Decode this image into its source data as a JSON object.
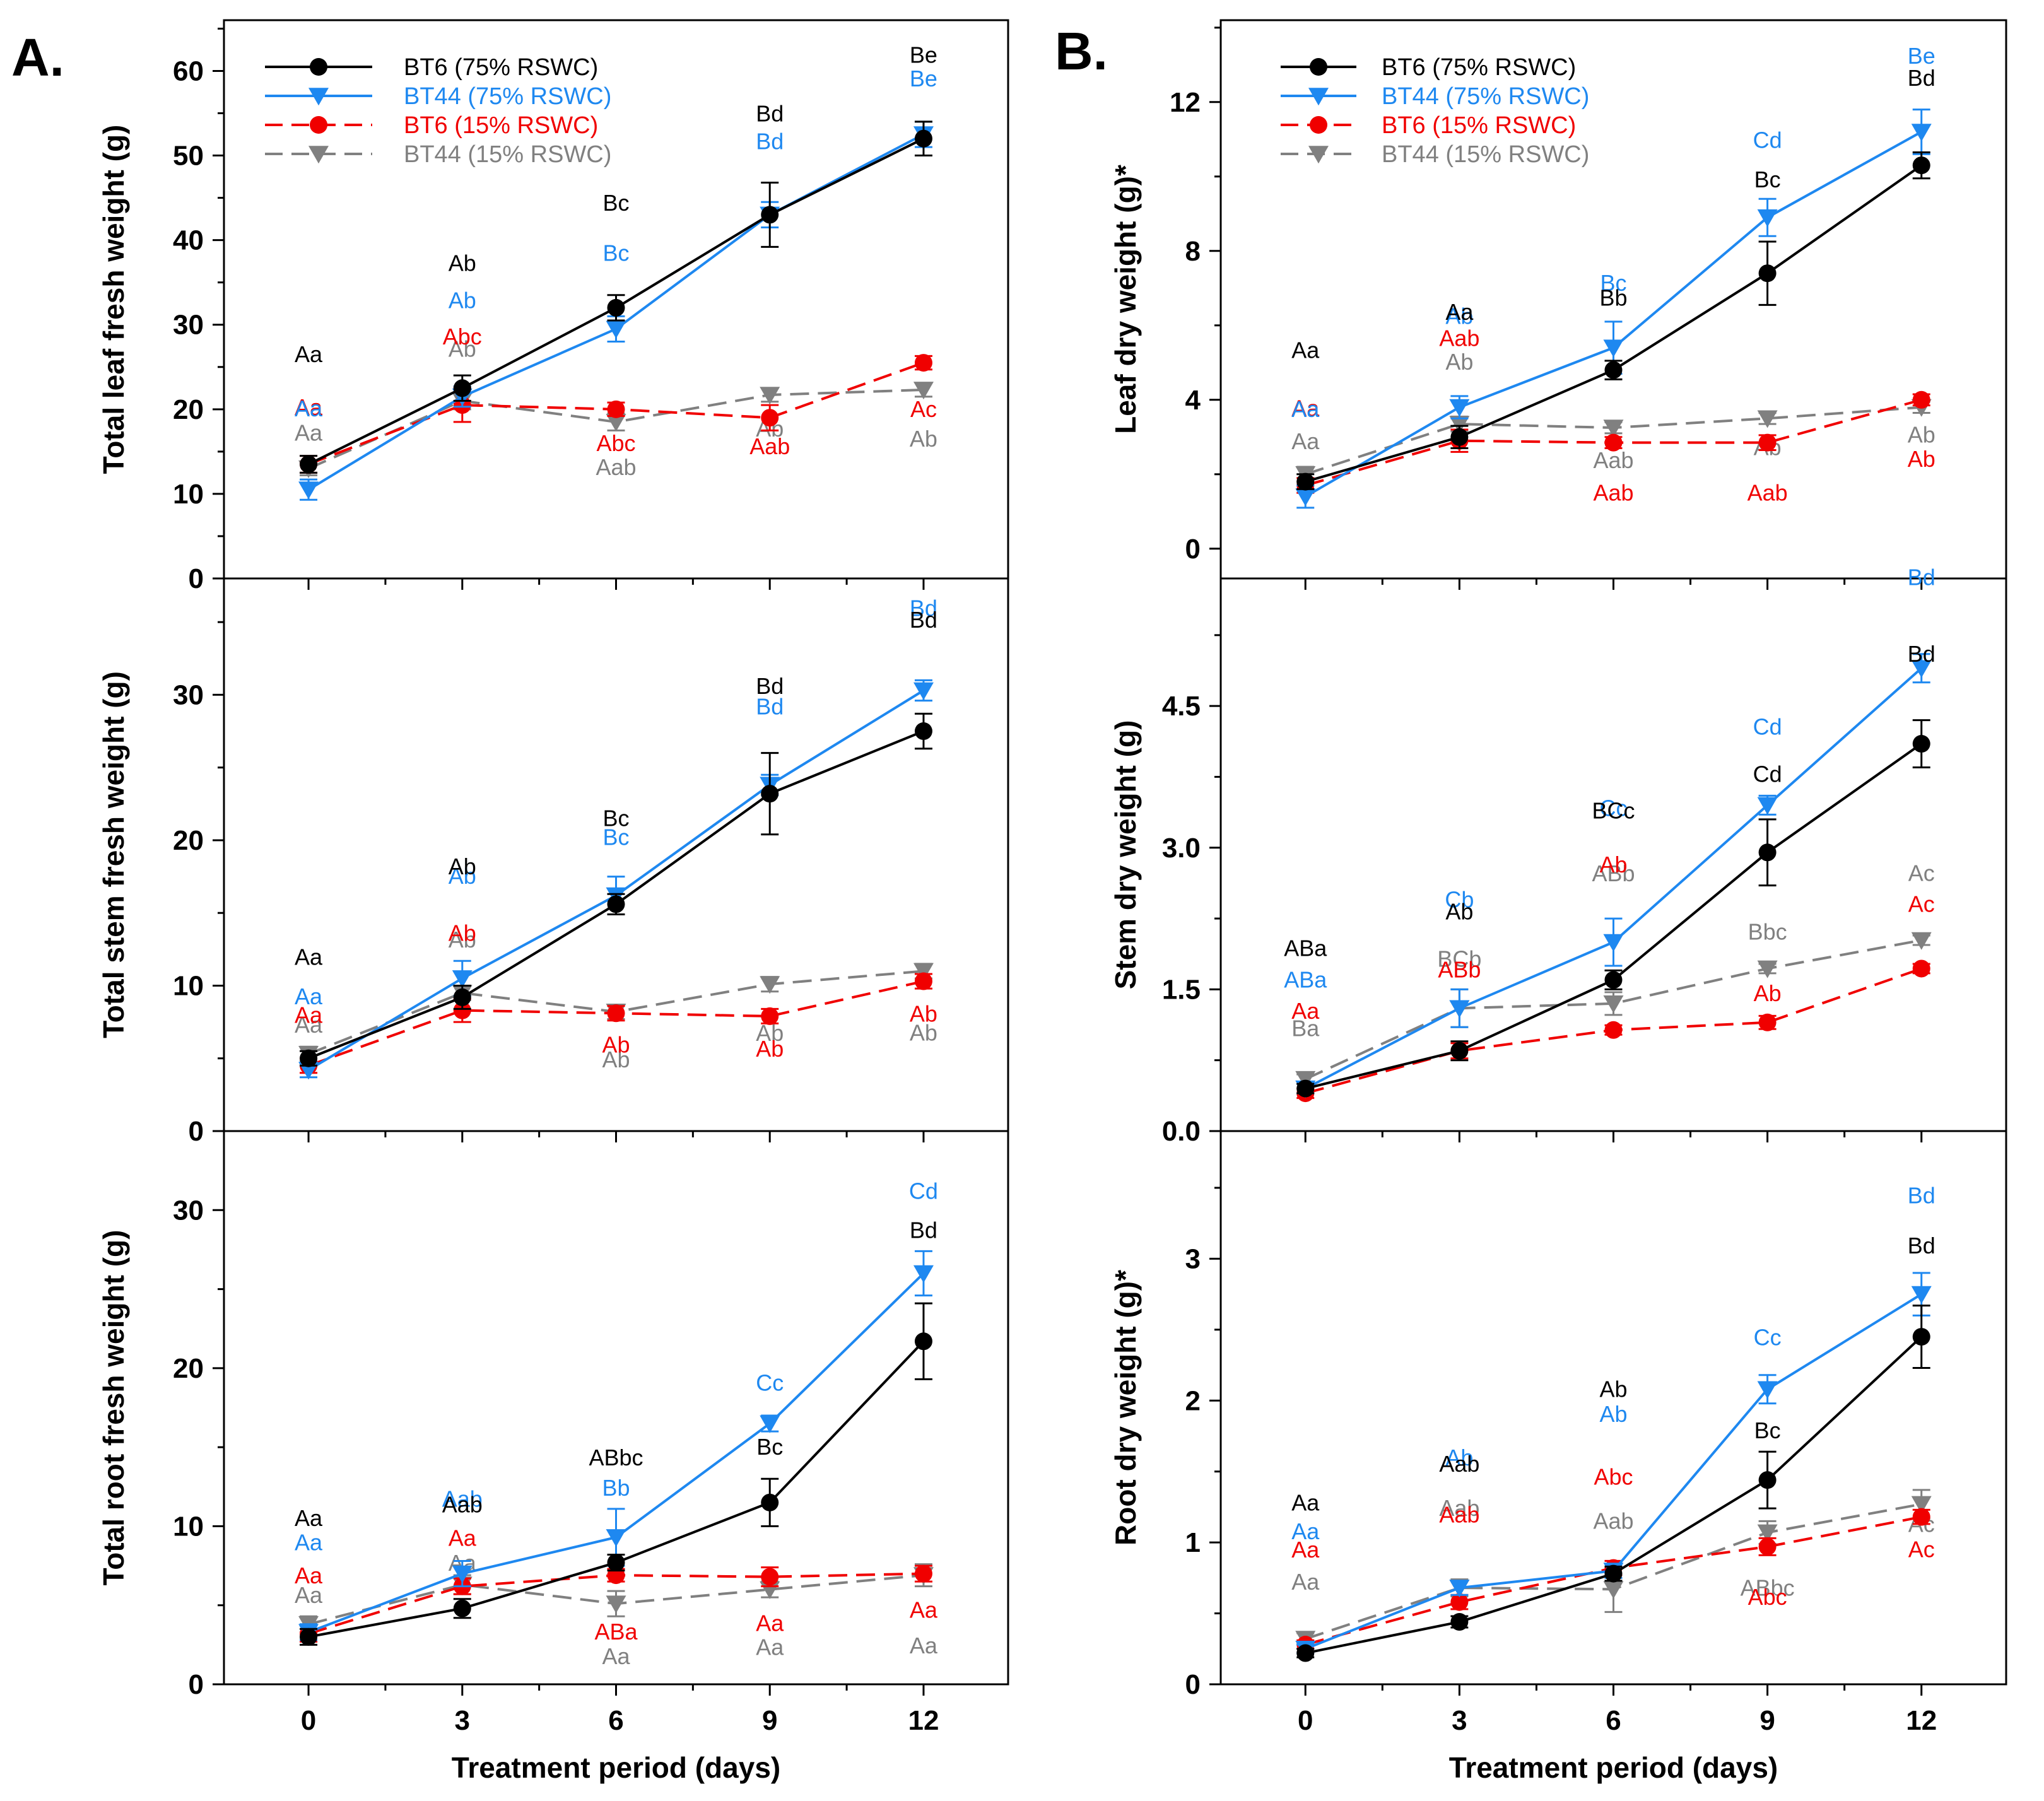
{
  "figure_labels": {
    "a": "A.",
    "b": "B."
  },
  "legend": [
    {
      "label": "BT6 (75% RSWC)",
      "color": "#000000",
      "marker": "circle",
      "dash": false
    },
    {
      "label": "BT44 (75% RSWC)",
      "color": "#1e88f0",
      "marker": "triangle-down",
      "dash": false
    },
    {
      "label": "BT6 (15% RSWC)",
      "color": "#f00000",
      "marker": "circle",
      "dash": true
    },
    {
      "label": "BT44 (15% RSWC)",
      "color": "#808080",
      "marker": "triangle-down",
      "dash": true
    }
  ],
  "chart_data": [
    {
      "type": "line",
      "id": "leaf-fresh",
      "ylabel": "Total leaf fresh weight (g)",
      "xlabel": "Treatment period (days)",
      "x": [
        0,
        3,
        6,
        9,
        12
      ],
      "ylim": [
        0,
        66
      ],
      "yticks": [
        0,
        10,
        20,
        30,
        40,
        50,
        60
      ],
      "series": [
        {
          "name": "BT6 (75% RSWC)",
          "values": [
            13.5,
            22.5,
            32,
            43,
            52
          ],
          "errors": [
            1.0,
            1.5,
            1.5,
            3.8,
            2.0
          ],
          "labels": [
            "Aa",
            "Ab",
            "Bc",
            "Bd",
            "Be"
          ]
        },
        {
          "name": "BT44 (75% RSWC)",
          "values": [
            10.5,
            21.5,
            29.5,
            43,
            52.5
          ],
          "errors": [
            1.2,
            1.2,
            1.5,
            1.5,
            1.5
          ],
          "labels": [
            "Aa",
            "Ab",
            "Bc",
            "Bd",
            "Be"
          ]
        },
        {
          "name": "BT6 (15% RSWC)",
          "values": [
            13.5,
            20.5,
            20,
            19,
            25.5
          ],
          "errors": [
            1.0,
            2.0,
            0.8,
            1.5,
            0.8
          ],
          "labels": [
            "Aa",
            "Abc",
            "Abc",
            "Aab",
            "Ac"
          ]
        },
        {
          "name": "BT44 (15% RSWC)",
          "values": [
            13,
            21,
            18.5,
            21.7,
            22.3
          ],
          "errors": [
            0.8,
            1.0,
            1.0,
            0.8,
            0.8
          ],
          "labels": [
            "Aa",
            "Ab",
            "Aab",
            "Ab",
            "Ab"
          ]
        }
      ]
    },
    {
      "type": "line",
      "id": "stem-fresh",
      "ylabel": "Total stem fresh weight (g)",
      "xlabel": "Treatment period (days)",
      "x": [
        0,
        3,
        6,
        9,
        12
      ],
      "ylim": [
        0,
        38
      ],
      "yticks": [
        0,
        10,
        20,
        30
      ],
      "series": [
        {
          "name": "BT6 (75% RSWC)",
          "values": [
            5,
            9.2,
            15.6,
            23.2,
            27.5
          ],
          "errors": [
            0.5,
            0.8,
            0.7,
            2.8,
            1.2
          ],
          "labels": [
            "Aa",
            "Ab",
            "Bc",
            "Bd",
            "Bd"
          ]
        },
        {
          "name": "BT44 (75% RSWC)",
          "values": [
            4.2,
            10.5,
            16.2,
            23.8,
            30.3
          ],
          "errors": [
            0.5,
            1.2,
            1.3,
            0.7,
            0.7
          ],
          "labels": [
            "Aa",
            "Ab",
            "Bc",
            "Bd",
            "Bd"
          ]
        },
        {
          "name": "BT6 (15% RSWC)",
          "values": [
            4.5,
            8.3,
            8.1,
            7.9,
            10.3
          ],
          "errors": [
            0.5,
            0.8,
            0.5,
            0.5,
            0.5
          ],
          "labels": [
            "Aa",
            "Ab",
            "Ab",
            "Ab",
            "Ab"
          ]
        },
        {
          "name": "BT44 (15% RSWC)",
          "values": [
            5.3,
            9.5,
            8.2,
            10.1,
            11
          ],
          "errors": [
            0.5,
            0.5,
            0.5,
            0.5,
            0.5
          ],
          "labels": [
            "Aa",
            "Ab",
            "Ab",
            "Ab",
            "Ab"
          ]
        }
      ]
    },
    {
      "type": "line",
      "id": "root-fresh",
      "ylabel": "Total root fresh weight (g)",
      "xlabel": "Treatment period (days)",
      "x": [
        0,
        3,
        6,
        9,
        12
      ],
      "ylim": [
        0,
        35
      ],
      "yticks": [
        0,
        10,
        20,
        30
      ],
      "series": [
        {
          "name": "BT6 (75% RSWC)",
          "values": [
            3,
            4.8,
            7.7,
            11.5,
            21.7
          ],
          "errors": [
            0.5,
            0.6,
            0.5,
            1.5,
            2.4
          ],
          "labels": [
            "Aa",
            "Aab",
            "ABbc",
            "Bc",
            "Bd"
          ]
        },
        {
          "name": "BT44 (75% RSWC)",
          "values": [
            3.3,
            7,
            9.3,
            16.5,
            26
          ],
          "errors": [
            0.5,
            0.8,
            1.8,
            0.5,
            1.4
          ],
          "labels": [
            "Aa",
            "Aab",
            "Bb",
            "Cc",
            "Cd"
          ]
        },
        {
          "name": "BT6 (15% RSWC)",
          "values": [
            3.2,
            6.2,
            6.9,
            6.8,
            7
          ],
          "errors": [
            0.5,
            0.5,
            0.4,
            0.6,
            0.5
          ],
          "labels": [
            "Aa",
            "Aa",
            "ABa",
            "Aa",
            "Aa"
          ]
        },
        {
          "name": "BT44 (15% RSWC)",
          "values": [
            3.8,
            6.3,
            5.1,
            6,
            6.9
          ],
          "errors": [
            0.5,
            0.6,
            0.8,
            0.5,
            0.7
          ],
          "labels": [
            "Aa",
            "Aa",
            "Aa",
            "Aa",
            "Aa"
          ]
        }
      ]
    },
    {
      "type": "line",
      "id": "leaf-dry",
      "ylabel": "Leaf dry weight (g)*",
      "xlabel": "Treatment period (days)",
      "x": [
        0,
        3,
        6,
        9,
        12
      ],
      "ylim": [
        -0.8,
        14.2
      ],
      "yticks": [
        0,
        4,
        8,
        12
      ],
      "series": [
        {
          "name": "BT6 (75% RSWC)",
          "values": [
            1.8,
            3,
            4.8,
            7.4,
            10.3
          ],
          "errors": [
            0.2,
            0.3,
            0.25,
            0.85,
            0.35
          ],
          "labels": [
            "Aa",
            "Aa",
            "Bb",
            "Bc",
            "Bd"
          ]
        },
        {
          "name": "BT44 (75% RSWC)",
          "values": [
            1.4,
            3.8,
            5.4,
            8.9,
            11.2
          ],
          "errors": [
            0.3,
            0.3,
            0.7,
            0.5,
            0.6
          ],
          "labels": [
            "Aa",
            "Ab",
            "Bc",
            "Cd",
            "Be"
          ]
        },
        {
          "name": "BT6 (15% RSWC)",
          "values": [
            1.7,
            2.9,
            2.85,
            2.85,
            4
          ],
          "errors": [
            0.2,
            0.3,
            0.15,
            0.2,
            0.15
          ],
          "labels": [
            "Aa",
            "Aab",
            "Aab",
            "Aab",
            "Ab"
          ]
        },
        {
          "name": "BT44 (15% RSWC)",
          "values": [
            2,
            3.35,
            3.25,
            3.5,
            3.8
          ],
          "errors": [
            0.2,
            0.2,
            0.15,
            0.15,
            0.15
          ],
          "labels": [
            "Aa",
            "Ab",
            "Aab",
            "Ab",
            "Ab"
          ]
        }
      ]
    },
    {
      "type": "line",
      "id": "stem-dry",
      "ylabel": "Stem dry weight (g)",
      "xlabel": "Treatment period (days)",
      "x": [
        0,
        3,
        6,
        9,
        12
      ],
      "ylim": [
        0,
        5.85
      ],
      "yticks": [
        0,
        1.5,
        3,
        4.5
      ],
      "ytick_labels": [
        "0.0",
        "1.5",
        "3.0",
        "4.5"
      ],
      "series": [
        {
          "name": "BT6 (75% RSWC)",
          "values": [
            0.45,
            0.85,
            1.6,
            2.95,
            4.1
          ],
          "errors": [
            0.05,
            0.1,
            0.1,
            0.35,
            0.25
          ],
          "labels": [
            "ABa",
            "Ab",
            "BCc",
            "Cd",
            "Bd"
          ]
        },
        {
          "name": "BT44 (75% RSWC)",
          "values": [
            0.45,
            1.3,
            2,
            3.45,
            4.9
          ],
          "errors": [
            0.05,
            0.2,
            0.25,
            0.1,
            0.15
          ],
          "labels": [
            "ABa",
            "Cb",
            "Cc",
            "Cd",
            "Bd"
          ]
        },
        {
          "name": "BT6 (15% RSWC)",
          "values": [
            0.4,
            0.85,
            1.07,
            1.15,
            1.72
          ],
          "errors": [
            0.05,
            0.08,
            0.05,
            0.07,
            0.05
          ],
          "labels": [
            "Aa",
            "ABb",
            "Ab",
            "Ab",
            "Ac"
          ]
        },
        {
          "name": "BT44 (15% RSWC)",
          "values": [
            0.55,
            1.3,
            1.35,
            1.72,
            2.02
          ],
          "errors": [
            0.05,
            0.2,
            0.12,
            0.05,
            0.05
          ],
          "labels": [
            "Ba",
            "BCb",
            "ABb",
            "Bbc",
            "Ac"
          ]
        }
      ]
    },
    {
      "type": "line",
      "id": "root-dry",
      "ylabel": "Root dry weight (g)*",
      "xlabel": "Treatment period (days)",
      "x": [
        0,
        3,
        6,
        9,
        12
      ],
      "ylim": [
        0,
        3.9
      ],
      "yticks": [
        0,
        1,
        2,
        3
      ],
      "series": [
        {
          "name": "BT6 (75% RSWC)",
          "values": [
            0.22,
            0.44,
            0.78,
            1.44,
            2.45
          ],
          "errors": [
            0.03,
            0.04,
            0.05,
            0.2,
            0.22
          ],
          "labels": [
            "Aa",
            "Aab",
            "Ab",
            "Bc",
            "Bd"
          ]
        },
        {
          "name": "BT44 (75% RSWC)",
          "values": [
            0.25,
            0.68,
            0.8,
            2.08,
            2.75
          ],
          "errors": [
            0.03,
            0.05,
            0.05,
            0.1,
            0.15
          ],
          "labels": [
            "Aa",
            "Ab",
            "Ab",
            "Cc",
            "Bd"
          ]
        },
        {
          "name": "BT6 (15% RSWC)",
          "values": [
            0.28,
            0.58,
            0.82,
            0.97,
            1.18
          ],
          "errors": [
            0.03,
            0.05,
            0.05,
            0.06,
            0.05
          ],
          "labels": [
            "Aa",
            "Aab",
            "Abc",
            "Abc",
            "Ac"
          ]
        },
        {
          "name": "BT44 (15% RSWC)",
          "values": [
            0.32,
            0.68,
            0.67,
            1.07,
            1.27
          ],
          "errors": [
            0.04,
            0.06,
            0.16,
            0.08,
            0.1
          ],
          "labels": [
            "Aa",
            "Aab",
            "Aab",
            "ABbc",
            "Ac"
          ]
        }
      ]
    }
  ]
}
